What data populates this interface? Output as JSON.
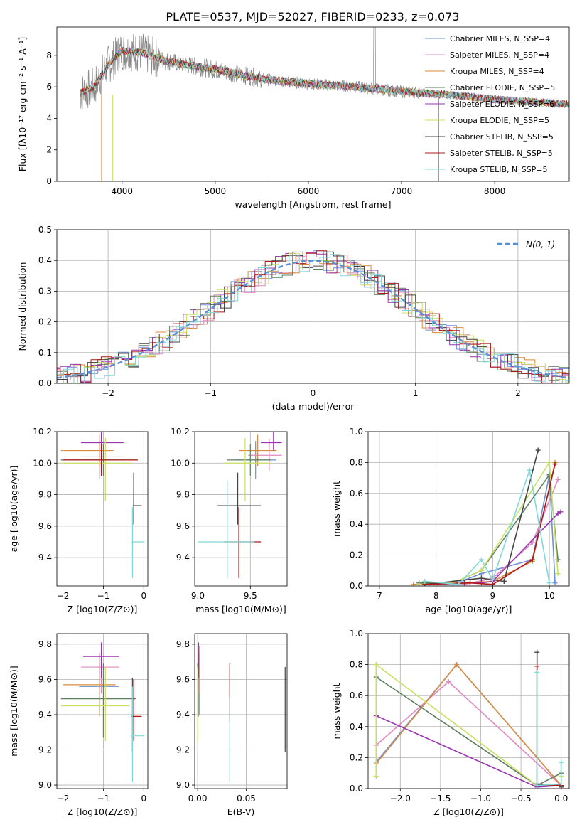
{
  "figure_title": "PLATE=0537, MJD=52027, FIBERID=0233, z=0.073",
  "colors": {
    "c_miles": "#6f8fd8",
    "s_miles": "#e089c0",
    "k_miles": "#d98b3b",
    "c_elodie": "#5f7f5f",
    "s_elodie": "#9a33b0",
    "k_elodie": "#c8e060",
    "c_stelib": "#444444",
    "s_stelib": "#b01818",
    "k_stelib": "#80d8d8",
    "data": "#888888",
    "grid": "#b0b0b0",
    "normal": "#5a8fd6"
  },
  "chart_data": [
    {
      "id": "spectrum",
      "type": "line",
      "xlabel": "wavelength [Angstrom, rest frame]",
      "ylabel": "Flux [fλ10⁻¹⁷ erg cm⁻² s⁻¹ A⁻¹]",
      "xlim": [
        3300,
        8800
      ],
      "ylim": [
        0,
        9.8
      ],
      "xticks": [
        4000,
        5000,
        6000,
        7000,
        8000
      ],
      "yticks": [
        0,
        2,
        4,
        6,
        8
      ],
      "grid": false,
      "legend": "top-right",
      "continuum": {
        "x": [
          3550,
          3700,
          3850,
          4000,
          4200,
          4500,
          5000,
          5500,
          6000,
          6500,
          7000,
          7500,
          8000,
          8500,
          8800
        ],
        "y": [
          5.6,
          6.0,
          7.4,
          8.3,
          8.2,
          7.6,
          7.1,
          6.5,
          6.2,
          6.0,
          5.7,
          5.5,
          5.2,
          5.0,
          4.9
        ]
      },
      "legend_entries": [
        {
          "name": "Chabrier MILES, N_SSP=4",
          "color": "c_miles"
        },
        {
          "name": "Salpeter MILES, N_SSP=4",
          "color": "s_miles"
        },
        {
          "name": "Kroupa MILES, N_SSP=4",
          "color": "k_miles"
        },
        {
          "name": "Chabrier ELODIE, N_SSP=5",
          "color": "c_elodie"
        },
        {
          "name": "Salpeter ELODIE, N_SSP=6",
          "color": "s_elodie"
        },
        {
          "name": "Kroupa ELODIE, N_SSP=5",
          "color": "k_elodie"
        },
        {
          "name": "Chabrier STELIB, N_SSP=5",
          "color": "c_stelib"
        },
        {
          "name": "Salpeter STELIB, N_SSP=5",
          "color": "s_stelib"
        },
        {
          "name": "Kroupa STELIB, N_SSP=5",
          "color": "k_stelib"
        }
      ]
    },
    {
      "id": "residuals",
      "type": "histogram",
      "xlabel": "(data-model)/error",
      "ylabel": "Normed distribution",
      "xlim": [
        -2.5,
        2.5
      ],
      "ylim": [
        0,
        0.5
      ],
      "xticks": [
        -2,
        -1,
        0,
        1,
        2
      ],
      "yticks": [
        0.0,
        0.1,
        0.2,
        0.3,
        0.4,
        0.5
      ],
      "grid": true,
      "legend": "top-right",
      "legend_entries": [
        {
          "name": "N(0, 1)",
          "color": "normal"
        }
      ],
      "bin_width": 0.1
    },
    {
      "id": "age_vs_Z",
      "type": "errorbar",
      "xlabel": "Z [log10(Z/Z⊙)]",
      "ylabel": "age [log10(age/yr)]",
      "xlim": [
        -2.15,
        0.1
      ],
      "ylim": [
        9.22,
        10.2
      ],
      "xticks": [
        -2,
        -1,
        0
      ],
      "yticks": [
        9.4,
        9.6,
        9.8,
        10.0,
        10.2
      ],
      "grid": true,
      "points": [
        {
          "c": "c_miles",
          "x": -1.1,
          "xerr": [
            0.9,
            0.35
          ],
          "y": 10.02,
          "yerr": [
            0.12,
            0.12
          ]
        },
        {
          "c": "s_miles",
          "x": -1.05,
          "xerr": [
            0.5,
            0.55
          ],
          "y": 10.04,
          "yerr": [
            0.12,
            0.1
          ]
        },
        {
          "c": "k_miles",
          "x": -1.1,
          "xerr": [
            0.95,
            0.35
          ],
          "y": 10.08,
          "yerr": [
            0.1,
            0.1
          ]
        },
        {
          "c": "c_elodie",
          "x": -1.0,
          "xerr": [
            1.05,
            0.85
          ],
          "y": 10.02,
          "yerr": [
            0.1,
            0.1
          ]
        },
        {
          "c": "s_elodie",
          "x": -1.05,
          "xerr": [
            0.5,
            0.55
          ],
          "y": 10.13,
          "yerr": [
            0.05,
            0.07
          ]
        },
        {
          "c": "k_elodie",
          "x": -0.95,
          "xerr": [
            1.1,
            0.65
          ],
          "y": 10.0,
          "yerr": [
            0.24,
            0.16
          ]
        },
        {
          "c": "c_stelib",
          "x": -0.25,
          "xerr": [
            0.02,
            0.2
          ],
          "y": 9.73,
          "yerr": [
            0.12,
            0.21
          ]
        },
        {
          "c": "s_stelib",
          "x": -1.05,
          "xerr": [
            0.95,
            0.9
          ],
          "y": 10.02,
          "yerr": [
            0.1,
            0.1
          ]
        },
        {
          "c": "k_stelib",
          "x": -0.28,
          "xerr": [
            0.02,
            0.3
          ],
          "y": 9.5,
          "yerr": [
            0.23,
            0.22
          ]
        }
      ]
    },
    {
      "id": "age_vs_mass",
      "type": "errorbar",
      "xlabel": "mass [log10(M/M⊙)]",
      "ylabel": "",
      "xlim": [
        8.97,
        9.85
      ],
      "ylim": [
        9.22,
        10.2
      ],
      "xticks": [
        9.0,
        9.5
      ],
      "yticks": [
        9.4,
        9.6,
        9.8,
        10.0,
        10.2
      ],
      "grid": true,
      "points": [
        {
          "c": "c_miles",
          "x": 9.55,
          "xerr": [
            0.2,
            0.2
          ],
          "y": 10.02,
          "yerr": [
            0.12,
            0.12
          ]
        },
        {
          "c": "s_miles",
          "x": 9.68,
          "xerr": [
            0.2,
            0.12
          ],
          "y": 10.05,
          "yerr": [
            0.1,
            0.1
          ]
        },
        {
          "c": "k_miles",
          "x": 9.57,
          "xerr": [
            0.18,
            0.18
          ],
          "y": 10.08,
          "yerr": [
            0.1,
            0.1
          ]
        },
        {
          "c": "c_elodie",
          "x": 9.5,
          "xerr": [
            0.22,
            0.2
          ],
          "y": 10.02,
          "yerr": [
            0.1,
            0.1
          ]
        },
        {
          "c": "s_elodie",
          "x": 9.72,
          "xerr": [
            0.12,
            0.08
          ],
          "y": 10.13,
          "yerr": [
            0.05,
            0.07
          ]
        },
        {
          "c": "k_elodie",
          "x": 9.45,
          "xerr": [
            0.2,
            0.25
          ],
          "y": 10.0,
          "yerr": [
            0.24,
            0.16
          ]
        },
        {
          "c": "c_stelib",
          "x": 9.38,
          "xerr": [
            0.2,
            0.22
          ],
          "y": 9.73,
          "yerr": [
            0.12,
            0.21
          ]
        },
        {
          "c": "s_stelib",
          "x": 9.39,
          "xerr": [
            0.14,
            0.21
          ],
          "y": 9.5,
          "yerr": [
            0.23,
            0.22
          ]
        },
        {
          "c": "k_stelib",
          "x": 9.28,
          "xerr": [
            0.28,
            0.26
          ],
          "y": 9.5,
          "yerr": [
            0.23,
            0.39
          ]
        }
      ]
    },
    {
      "id": "weight_vs_age",
      "type": "line",
      "xlabel": "age [log10(age/yr)]",
      "ylabel": "mass weight",
      "xlim": [
        6.8,
        10.35
      ],
      "ylim": [
        0,
        1.0
      ],
      "xticks": [
        7,
        8,
        9,
        10
      ],
      "yticks": [
        0.0,
        0.2,
        0.4,
        0.6,
        0.8,
        1.0
      ],
      "grid": true,
      "series": [
        {
          "c": "c_miles",
          "x": [
            7.8,
            8.3,
            8.8,
            9.7,
            10.0,
            10.1
          ],
          "y": [
            0.02,
            0.01,
            0.08,
            0.17,
            0.72,
            0.02
          ]
        },
        {
          "c": "s_miles",
          "x": [
            7.8,
            8.5,
            9.0,
            9.7,
            10.15
          ],
          "y": [
            0.02,
            0.01,
            0.05,
            0.28,
            0.69
          ]
        },
        {
          "c": "k_miles",
          "x": [
            7.6,
            8.5,
            9.0,
            9.7,
            10.1
          ],
          "y": [
            0.01,
            0.02,
            0.03,
            0.16,
            0.8
          ]
        },
        {
          "c": "c_elodie",
          "x": [
            7.7,
            8.3,
            8.8,
            10.0,
            10.15
          ],
          "y": [
            0.02,
            0.02,
            0.1,
            0.72,
            0.17
          ]
        },
        {
          "c": "s_elodie",
          "x": [
            7.7,
            8.5,
            8.8,
            9.0,
            10.15,
            10.2
          ],
          "y": [
            0.01,
            0.02,
            0.02,
            0.03,
            0.47,
            0.48
          ]
        },
        {
          "c": "k_elodie",
          "x": [
            7.7,
            8.3,
            8.8,
            10.0,
            10.15
          ],
          "y": [
            0.01,
            0.02,
            0.1,
            0.8,
            0.08
          ]
        },
        {
          "c": "c_stelib",
          "x": [
            7.8,
            8.8,
            9.2,
            9.8
          ],
          "y": [
            0.01,
            0.05,
            0.03,
            0.88
          ]
        },
        {
          "c": "s_stelib",
          "x": [
            7.8,
            8.6,
            9.0,
            9.7,
            10.1
          ],
          "y": [
            0.01,
            0.02,
            0.01,
            0.17,
            0.79
          ]
        },
        {
          "c": "k_stelib",
          "x": [
            7.8,
            8.4,
            8.8,
            9.0,
            9.65,
            10.0
          ],
          "y": [
            0.03,
            0.01,
            0.17,
            0.04,
            0.75,
            0.02
          ]
        }
      ]
    },
    {
      "id": "mass_vs_Z",
      "type": "errorbar",
      "xlabel": "Z [log10(Z/Z⊙)]",
      "ylabel": "mass [log10(M/M⊙)]",
      "xlim": [
        -2.15,
        0.1
      ],
      "ylim": [
        8.98,
        9.86
      ],
      "xticks": [
        -2,
        -1,
        0
      ],
      "yticks": [
        9.0,
        9.2,
        9.4,
        9.6,
        9.8
      ],
      "grid": true,
      "points": [
        {
          "c": "c_miles",
          "x": -1.1,
          "xerr": [
            0.5,
            0.5
          ],
          "y": 9.56,
          "yerr": [
            0.16,
            0.19
          ]
        },
        {
          "c": "s_miles",
          "x": -1.05,
          "xerr": [
            0.5,
            0.45
          ],
          "y": 9.67,
          "yerr": [
            0.15,
            0.12
          ]
        },
        {
          "c": "k_miles",
          "x": -1.1,
          "xerr": [
            0.9,
            0.4
          ],
          "y": 9.57,
          "yerr": [
            0.18,
            0.18
          ]
        },
        {
          "c": "c_elodie",
          "x": -1.0,
          "xerr": [
            1.05,
            0.8
          ],
          "y": 9.49,
          "yerr": [
            0.22,
            0.2
          ]
        },
        {
          "c": "s_elodie",
          "x": -1.05,
          "xerr": [
            0.45,
            0.45
          ],
          "y": 9.73,
          "yerr": [
            0.12,
            0.08
          ]
        },
        {
          "c": "k_elodie",
          "x": -0.95,
          "xerr": [
            1.1,
            0.6
          ],
          "y": 9.45,
          "yerr": [
            0.2,
            0.22
          ]
        },
        {
          "c": "c_stelib",
          "x": -0.28,
          "xerr": [
            0.02,
            0.2
          ],
          "y": 9.39,
          "yerr": [
            0.2,
            0.22
          ]
        },
        {
          "c": "s_stelib",
          "x": -0.25,
          "xerr": [
            0.03,
            0.2
          ],
          "y": 9.39,
          "yerr": [
            0.14,
            0.21
          ]
        },
        {
          "c": "k_stelib",
          "x": -0.28,
          "xerr": [
            0.02,
            0.3
          ],
          "y": 9.28,
          "yerr": [
            0.26,
            0.28
          ]
        }
      ]
    },
    {
      "id": "mass_vs_EBV",
      "type": "errorbar",
      "xlabel": "E(B-V)",
      "ylabel": "",
      "xlim": [
        -0.003,
        0.092
      ],
      "ylim": [
        8.98,
        9.86
      ],
      "xticks": [
        0.0,
        0.05
      ],
      "yticks": [
        9.0,
        9.2,
        9.4,
        9.6,
        9.8
      ],
      "grid": true,
      "points": [
        {
          "c": "c_miles",
          "x": 0.002,
          "xerr": [
            0,
            0
          ],
          "y": 9.56,
          "yerr": [
            0.16,
            0.19
          ]
        },
        {
          "c": "s_miles",
          "x": 0.002,
          "xerr": [
            0,
            0
          ],
          "y": 9.67,
          "yerr": [
            0.15,
            0.12
          ]
        },
        {
          "c": "k_miles",
          "x": 0.001,
          "xerr": [
            0,
            0
          ],
          "y": 9.57,
          "yerr": [
            0.18,
            0.18
          ]
        },
        {
          "c": "c_elodie",
          "x": 0.0,
          "xerr": [
            0,
            0
          ],
          "y": 9.49,
          "yerr": [
            0.22,
            0.2
          ]
        },
        {
          "c": "s_elodie",
          "x": 0.001,
          "xerr": [
            0,
            0
          ],
          "y": 9.73,
          "yerr": [
            0.12,
            0.08
          ]
        },
        {
          "c": "k_elodie",
          "x": 0.0,
          "xerr": [
            0,
            0
          ],
          "y": 9.45,
          "yerr": [
            0.2,
            0.22
          ]
        },
        {
          "c": "c_stelib",
          "x": 0.09,
          "xerr": [
            0,
            0
          ],
          "y": 9.39,
          "yerr": [
            0.2,
            0.28
          ]
        },
        {
          "c": "s_stelib",
          "x": 0.033,
          "xerr": [
            0,
            0
          ],
          "y": 9.5,
          "yerr": [
            0.14,
            0.19
          ]
        },
        {
          "c": "k_stelib",
          "x": 0.033,
          "xerr": [
            0,
            0
          ],
          "y": 9.3,
          "yerr": [
            0.28,
            0.2
          ]
        }
      ]
    },
    {
      "id": "weight_vs_Z",
      "type": "line",
      "xlabel": "Z [log10(Z/Z⊙)]",
      "ylabel": "mass weight",
      "xlim": [
        -2.4,
        0.1
      ],
      "ylim": [
        0,
        1.0
      ],
      "xticks": [
        -2.0,
        -1.5,
        -1.0,
        -0.5,
        0.0
      ],
      "yticks": [
        0.0,
        0.2,
        0.4,
        0.6,
        0.8,
        1.0
      ],
      "grid": true,
      "series": [
        {
          "c": "c_miles",
          "x": [
            -2.3,
            -1.3,
            0.0,
            0.0
          ],
          "y": [
            0.17,
            0.8,
            0.02,
            0.01
          ]
        },
        {
          "c": "s_miles",
          "x": [
            -2.3,
            -1.4,
            0.0
          ],
          "y": [
            0.28,
            0.69,
            0.02
          ]
        },
        {
          "c": "k_miles",
          "x": [
            -2.3,
            -1.3,
            0.0
          ],
          "y": [
            0.16,
            0.8,
            0.02
          ]
        },
        {
          "c": "c_elodie",
          "x": [
            -2.3,
            -0.3,
            0.0,
            0.0
          ],
          "y": [
            0.72,
            0.02,
            0.1,
            0.17
          ]
        },
        {
          "c": "s_elodie",
          "x": [
            -2.3,
            -0.3,
            0.0
          ],
          "y": [
            0.47,
            0.01,
            0.02
          ]
        },
        {
          "c": "k_elodie",
          "x": [
            -2.3,
            -2.3,
            -0.3,
            0.0,
            0.0
          ],
          "y": [
            0.08,
            0.8,
            0.02,
            0.02,
            0.08
          ]
        },
        {
          "c": "c_stelib",
          "x": [
            -0.3,
            -0.3,
            0.0,
            0.0
          ],
          "y": [
            0.88,
            0.03,
            0.02,
            0.01
          ]
        },
        {
          "c": "s_stelib",
          "x": [
            -0.3,
            -0.3,
            0.0
          ],
          "y": [
            0.79,
            0.02,
            0.02
          ]
        },
        {
          "c": "k_stelib",
          "x": [
            -0.3,
            -0.3,
            0.0,
            0.0
          ],
          "y": [
            0.75,
            0.02,
            0.03,
            0.17
          ]
        }
      ]
    }
  ]
}
